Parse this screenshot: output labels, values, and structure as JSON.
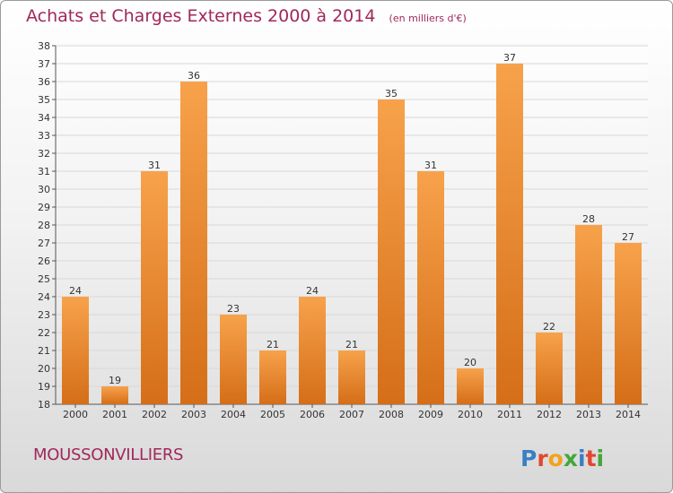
{
  "header": {
    "title": "Achats et Charges Externes 2000 à 2014",
    "unit": "(en milliers d'€)"
  },
  "footer": {
    "commune": "MOUSSONVILLIERS",
    "logo_text": "Proxiti"
  },
  "colors": {
    "bar_light": "#f7a24b",
    "bar_dark": "#d56e18",
    "title": "#a0285a"
  },
  "chart_data": {
    "type": "bar",
    "categories": [
      "2000",
      "2001",
      "2002",
      "2003",
      "2004",
      "2005",
      "2006",
      "2007",
      "2008",
      "2009",
      "2010",
      "2011",
      "2012",
      "2013",
      "2014"
    ],
    "values": [
      24,
      19,
      31,
      36,
      23,
      21,
      24,
      21,
      35,
      31,
      20,
      37,
      22,
      28,
      27
    ],
    "ylim": [
      18,
      38
    ],
    "yticks": [
      18,
      19,
      20,
      21,
      22,
      23,
      24,
      25,
      26,
      27,
      28,
      29,
      30,
      31,
      32,
      33,
      34,
      35,
      36,
      37,
      38
    ],
    "grid": true,
    "legend": "none"
  }
}
